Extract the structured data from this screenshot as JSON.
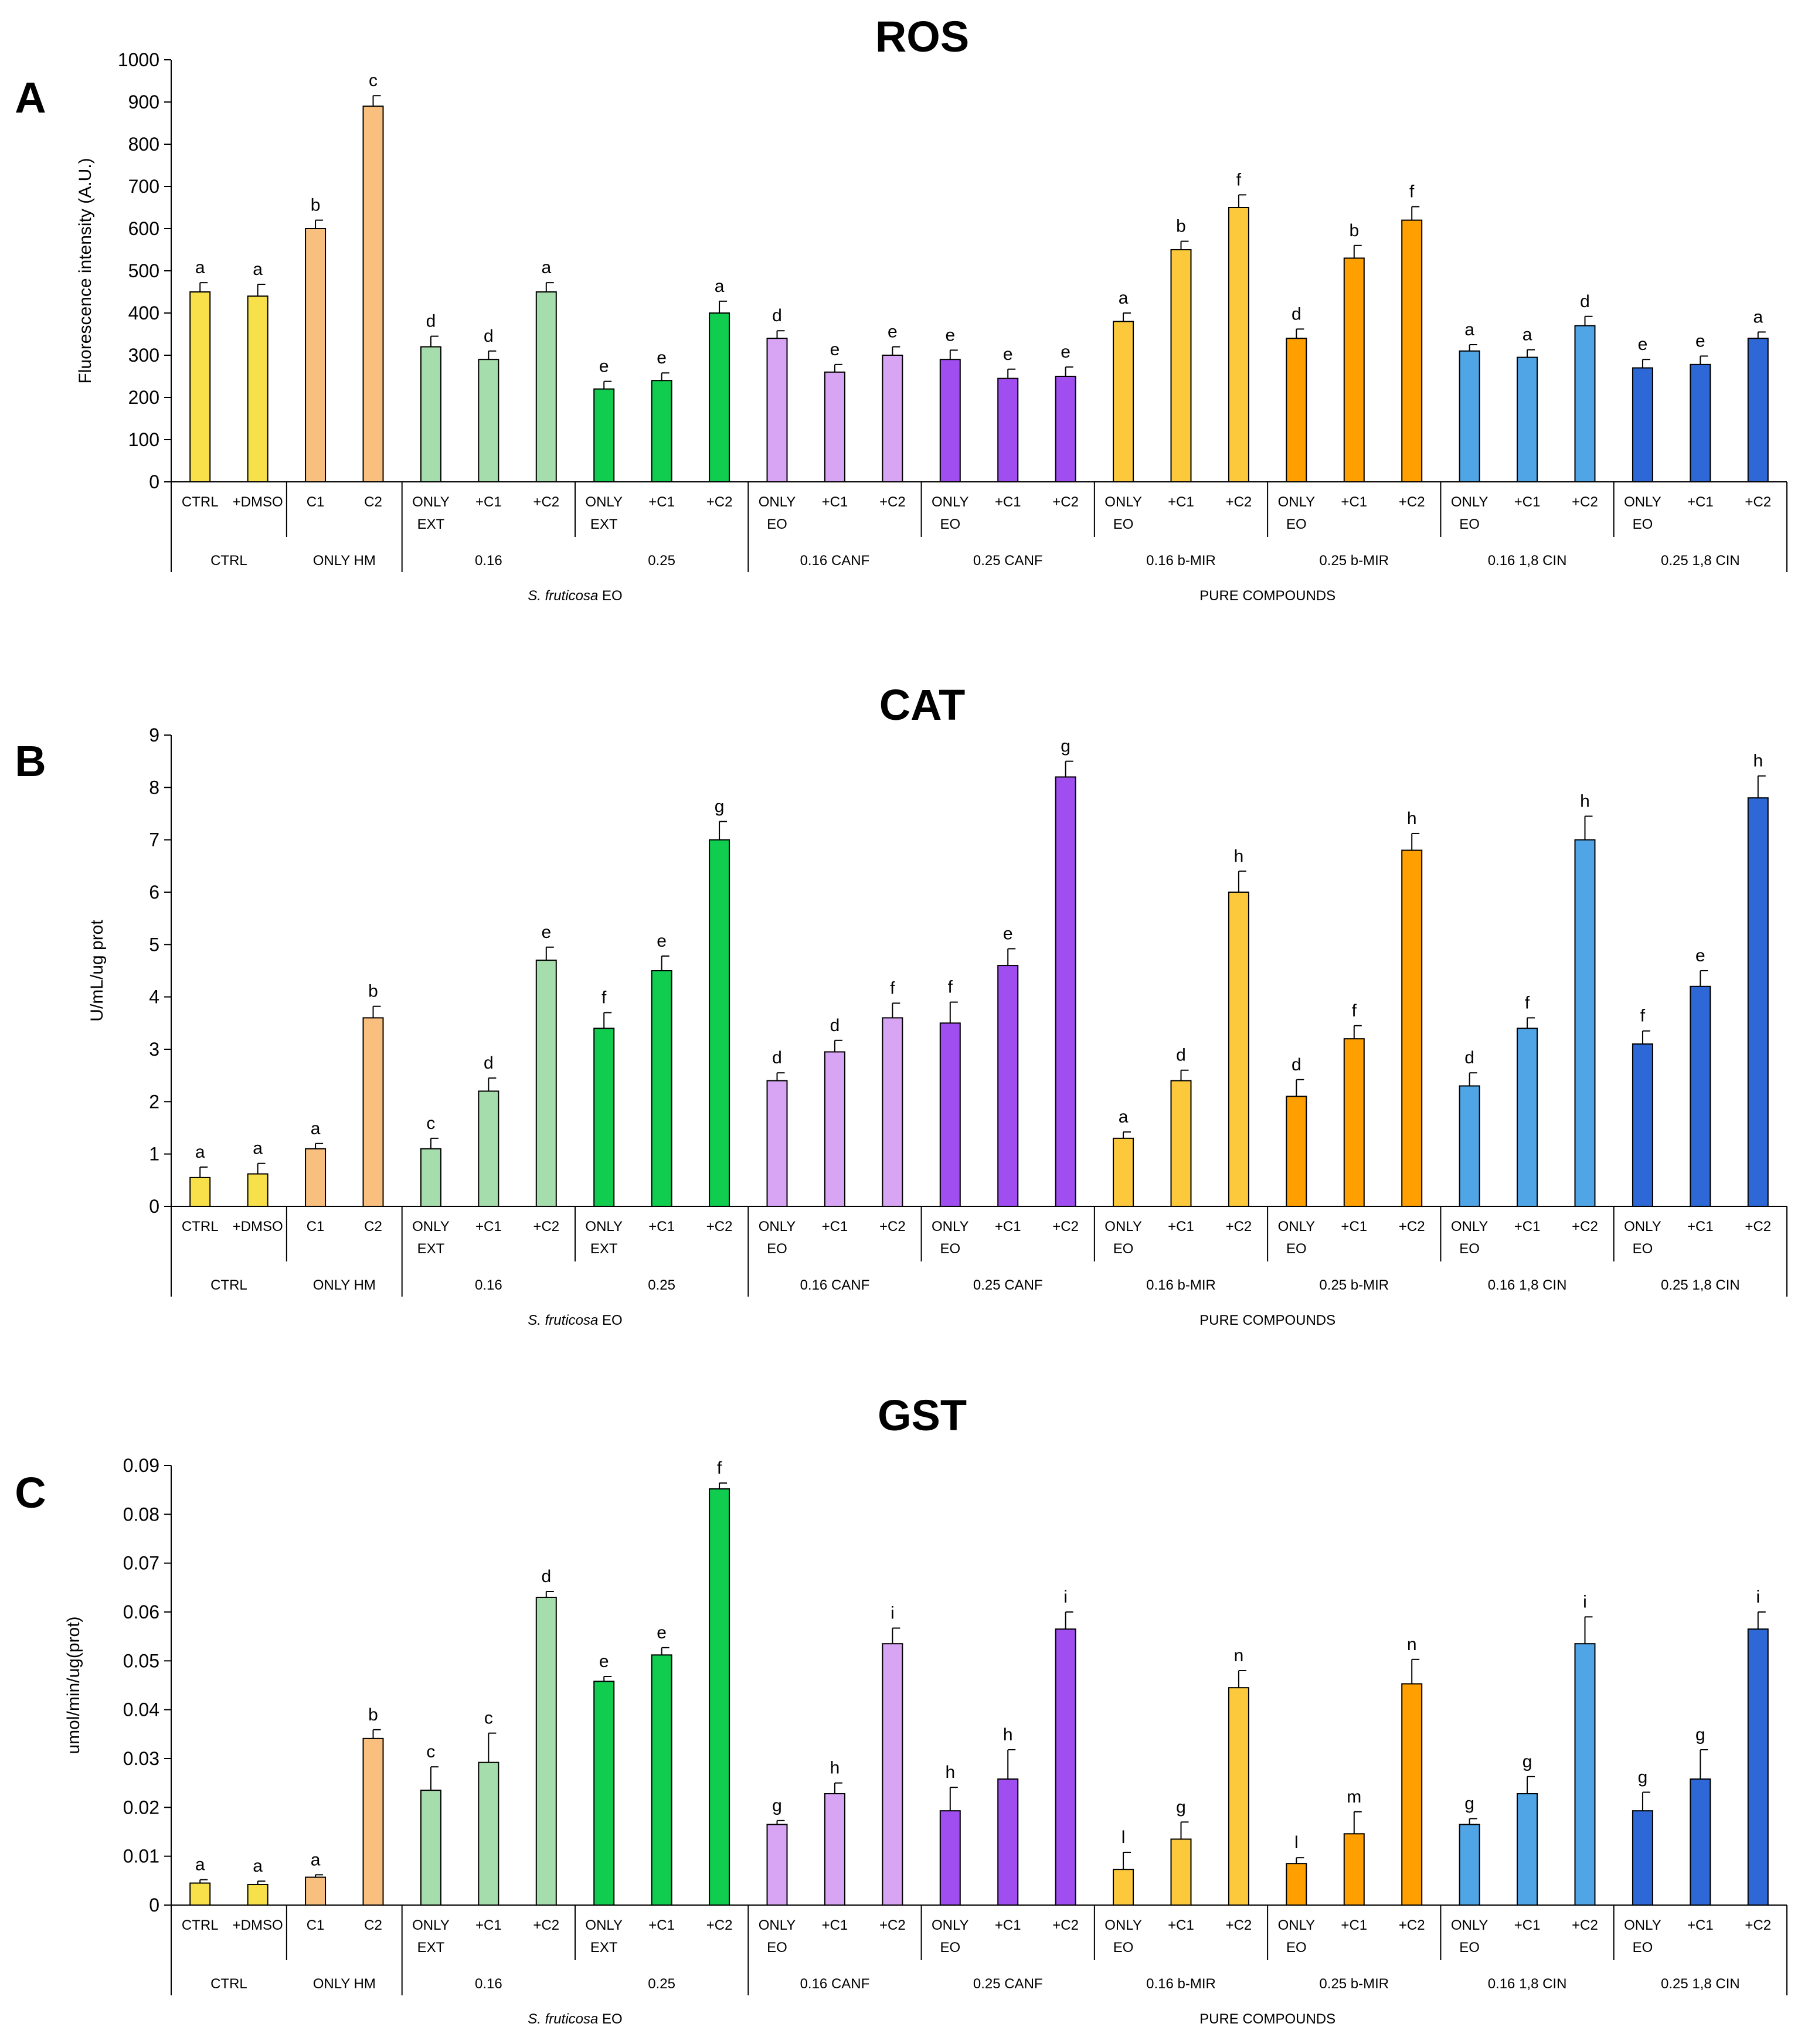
{
  "palette": {
    "yellow": "#f8e04a",
    "peach": "#f9bf7f",
    "lightgreen": "#a6ddac",
    "green": "#10cc4f",
    "lilac": "#d8a5f5",
    "purple": "#a04ef0",
    "gold": "#fbc93b",
    "orange": "#ffa000",
    "lightblue": "#4fa5e6",
    "blue": "#2e67d6"
  },
  "bar_colors": [
    "yellow",
    "yellow",
    "peach",
    "peach",
    "lightgreen",
    "lightgreen",
    "lightgreen",
    "green",
    "green",
    "green",
    "lilac",
    "lilac",
    "lilac",
    "purple",
    "purple",
    "purple",
    "gold",
    "gold",
    "gold",
    "orange",
    "orange",
    "orange",
    "lightblue",
    "lightblue",
    "lightblue",
    "blue",
    "blue",
    "blue"
  ],
  "x_ticks": [
    [
      "CTRL"
    ],
    [
      "+DMSO"
    ],
    [
      "C1"
    ],
    [
      "C2"
    ],
    [
      "ONLY",
      "EXT"
    ],
    [
      "+C1"
    ],
    [
      "+C2"
    ],
    [
      "ONLY",
      "EXT"
    ],
    [
      "+C1"
    ],
    [
      "+C2"
    ],
    [
      "ONLY",
      "EO"
    ],
    [
      "+C1"
    ],
    [
      "+C2"
    ],
    [
      "ONLY",
      "EO"
    ],
    [
      "+C1"
    ],
    [
      "+C2"
    ],
    [
      "ONLY",
      "EO"
    ],
    [
      "+C1"
    ],
    [
      "+C2"
    ],
    [
      "ONLY",
      "EO"
    ],
    [
      "+C1"
    ],
    [
      "+C2"
    ],
    [
      "ONLY",
      "EO"
    ],
    [
      "+C1"
    ],
    [
      "+C2"
    ],
    [
      "ONLY",
      "EO"
    ],
    [
      "+C1"
    ],
    [
      "+C2"
    ]
  ],
  "groups": [
    {
      "label": "CTRL",
      "start": 0,
      "n": 2
    },
    {
      "label": "ONLY HM",
      "start": 2,
      "n": 2
    },
    {
      "label": "0.16",
      "start": 4,
      "n": 3
    },
    {
      "label": "0.25",
      "start": 7,
      "n": 3
    },
    {
      "label": "0.16 CANF",
      "start": 10,
      "n": 3
    },
    {
      "label": "0.25 CANF",
      "start": 13,
      "n": 3
    },
    {
      "label": "0.16 b-MIR",
      "start": 16,
      "n": 3
    },
    {
      "label": "0.25 b-MIR",
      "start": 19,
      "n": 3
    },
    {
      "label": "0.16 1,8 CIN",
      "start": 22,
      "n": 3
    },
    {
      "label": "0.25 1,8 CIN",
      "start": 25,
      "n": 3
    }
  ],
  "supergroups": [
    {
      "label_italic": "S. fruticosa",
      "label_rest": " EO",
      "start": 4,
      "n": 6
    },
    {
      "label_italic": "",
      "label_rest": "PURE COMPOUNDS",
      "start": 10,
      "n": 18
    }
  ],
  "chart_data": [
    {
      "panel": "A",
      "type": "bar",
      "title": "ROS",
      "ylabel": "Fluorescence intensity (A.U.)",
      "ylim": [
        0,
        1000
      ],
      "ytick_step": 100,
      "ytick_decimals": 0,
      "values": [
        450,
        440,
        600,
        890,
        320,
        290,
        450,
        220,
        240,
        400,
        340,
        260,
        300,
        290,
        245,
        250,
        380,
        550,
        650,
        340,
        530,
        620,
        310,
        295,
        370,
        270,
        278,
        340
      ],
      "errors": [
        22,
        28,
        20,
        25,
        25,
        20,
        22,
        18,
        18,
        28,
        18,
        18,
        20,
        22,
        22,
        22,
        20,
        20,
        30,
        22,
        30,
        32,
        15,
        18,
        22,
        20,
        20,
        15
      ],
      "letters": [
        "a",
        "a",
        "b",
        "c",
        "d",
        "d",
        "a",
        "e",
        "e",
        "a",
        "d",
        "e",
        "e",
        "e",
        "e",
        "e",
        "a",
        "b",
        "f",
        "d",
        "b",
        "f",
        "a",
        "a",
        "d",
        "e",
        "e",
        "a"
      ]
    },
    {
      "panel": "B",
      "type": "bar",
      "title": "CAT",
      "ylabel": "U/mL/ug prot",
      "ylim": [
        0,
        9
      ],
      "ytick_step": 1,
      "ytick_decimals": 0,
      "values": [
        0.55,
        0.62,
        1.1,
        3.6,
        1.1,
        2.2,
        4.7,
        3.4,
        4.5,
        7.0,
        2.4,
        2.95,
        3.6,
        3.5,
        4.6,
        8.2,
        1.3,
        2.4,
        6.0,
        2.1,
        3.2,
        6.8,
        2.3,
        3.4,
        7.0,
        3.1,
        4.2,
        7.8
      ],
      "errors": [
        0.2,
        0.2,
        0.1,
        0.22,
        0.2,
        0.25,
        0.25,
        0.3,
        0.28,
        0.35,
        0.15,
        0.22,
        0.28,
        0.4,
        0.32,
        0.3,
        0.12,
        0.2,
        0.4,
        0.32,
        0.25,
        0.32,
        0.25,
        0.2,
        0.45,
        0.25,
        0.3,
        0.42
      ],
      "letters": [
        "a",
        "a",
        "a",
        "b",
        "c",
        "d",
        "e",
        "f",
        "e",
        "g",
        "d",
        "d",
        "f",
        "f",
        "e",
        "g",
        "a",
        "d",
        "h",
        "d",
        "f",
        "h",
        "d",
        "f",
        "h",
        "f",
        "e",
        "h"
      ]
    },
    {
      "panel": "C",
      "type": "bar",
      "title": "GST",
      "ylabel": "umol/min/ug(prot)",
      "ylim": [
        0,
        0.09
      ],
      "ytick_step": 0.01,
      "ytick_decimals": 2,
      "values": [
        0.0045,
        0.0042,
        0.0057,
        0.0341,
        0.0235,
        0.0292,
        0.063,
        0.0458,
        0.0512,
        0.0852,
        0.0165,
        0.0228,
        0.0535,
        0.0193,
        0.0258,
        0.0565,
        0.0073,
        0.0135,
        0.0445,
        0.0085,
        0.0146,
        0.0453,
        0.0165,
        0.0228,
        0.0535,
        0.0193,
        0.0258,
        0.0565
      ],
      "errors": [
        0.0007,
        0.0007,
        0.0005,
        0.0018,
        0.0048,
        0.006,
        0.0012,
        0.001,
        0.0015,
        0.0012,
        0.0008,
        0.0022,
        0.0032,
        0.0048,
        0.006,
        0.0035,
        0.0035,
        0.0035,
        0.0035,
        0.0012,
        0.0045,
        0.005,
        0.0012,
        0.0035,
        0.0055,
        0.0038,
        0.006,
        0.0035
      ],
      "letters": [
        "a",
        "a",
        "a",
        "b",
        "c",
        "c",
        "d",
        "e",
        "e",
        "f",
        "g",
        "h",
        "i",
        "h",
        "h",
        "i",
        "l",
        "g",
        "n",
        "l",
        "m",
        "n",
        "g",
        "g",
        "i",
        "g",
        "g",
        "i"
      ]
    }
  ]
}
